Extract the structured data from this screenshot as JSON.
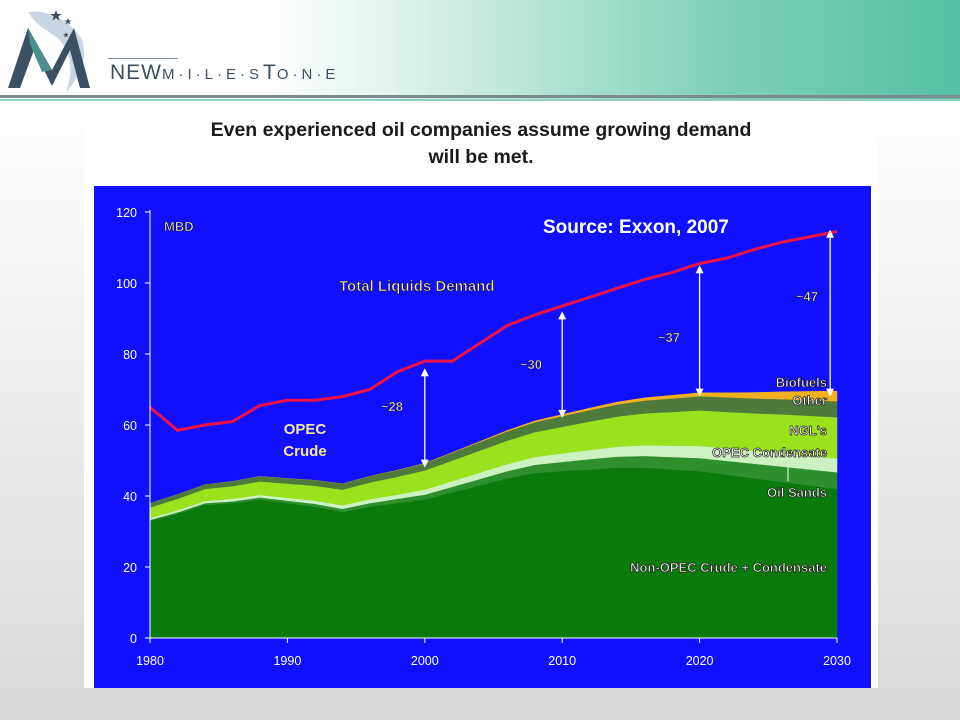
{
  "brand": {
    "name_part1": "NEW",
    "name_part2": "M·I·L·E·S",
    "name_part3": "T",
    "name_part4": "O·N·E",
    "colors": {
      "navy": "#3d4f63",
      "teal": "#4a8f8a",
      "accent": "#57c0a3"
    }
  },
  "slide": {
    "title_line1": "Even experienced oil companies assume growing demand",
    "title_line2": "will be met."
  },
  "chart_data": {
    "type": "area",
    "subtype": "stacked area with line",
    "source_label": "Source: Exxon, 2007",
    "unit_label": "MBD",
    "x": [
      1980,
      1982,
      1984,
      1986,
      1988,
      1990,
      1992,
      1994,
      1996,
      1998,
      2000,
      2002,
      2004,
      2006,
      2008,
      2010,
      2012,
      2014,
      2016,
      2018,
      2020,
      2022,
      2024,
      2026,
      2028,
      2030
    ],
    "xlim": [
      1980,
      2030
    ],
    "ylim": [
      0,
      120
    ],
    "x_ticks": [
      "1980",
      "1990",
      "2000",
      "2010",
      "2020",
      "2030"
    ],
    "y_ticks": [
      "0",
      "20",
      "40",
      "60",
      "80",
      "100",
      "120"
    ],
    "plot_background": "#1010ff",
    "series": [
      {
        "name": "Non-OPEC Crude + Condensate",
        "color": "#0a7a0a",
        "values": [
          33,
          35,
          37.5,
          38,
          39,
          38,
          37,
          35.5,
          37,
          38,
          39,
          41,
          43,
          45,
          46.5,
          47,
          47.5,
          48,
          48,
          47.5,
          47,
          46,
          45,
          44,
          43,
          42
        ]
      },
      {
        "name": "Oil Sands",
        "color": "#2f8f2f",
        "values": [
          0.3,
          0.4,
          0.5,
          0.5,
          0.6,
          0.7,
          0.8,
          0.9,
          1.0,
          1.2,
          1.4,
          1.6,
          1.8,
          2.0,
          2.3,
          2.6,
          2.9,
          3.1,
          3.3,
          3.5,
          3.7,
          3.9,
          4.1,
          4.3,
          4.5,
          4.7
        ]
      },
      {
        "name": "OPEC Condensate",
        "color": "#ccf2c2",
        "values": [
          0.5,
          0.6,
          0.6,
          0.7,
          0.7,
          0.8,
          0.9,
          1.0,
          1.1,
          1.2,
          1.4,
          1.6,
          1.8,
          2.0,
          2.2,
          2.4,
          2.6,
          2.8,
          3.0,
          3.2,
          3.4,
          3.5,
          3.6,
          3.7,
          3.8,
          3.9
        ]
      },
      {
        "name": "NGL's",
        "color": "#9ae21e",
        "values": [
          3,
          3.2,
          3.4,
          3.6,
          3.8,
          4,
          4.2,
          4.4,
          4.7,
          5,
          5.4,
          5.8,
          6.2,
          6.6,
          7,
          7.5,
          8,
          8.5,
          9,
          9.5,
          10,
          10.3,
          10.6,
          11,
          11.3,
          11.6
        ]
      },
      {
        "name": "Other",
        "color": "#4e7a3c",
        "values": [
          1.2,
          1.3,
          1.3,
          1.4,
          1.5,
          1.5,
          1.6,
          1.7,
          1.8,
          1.9,
          2.0,
          2.2,
          2.4,
          2.6,
          2.8,
          3.0,
          3.2,
          3.4,
          3.6,
          3.8,
          4.0,
          4.1,
          4.2,
          4.3,
          4.4,
          4.5
        ]
      },
      {
        "name": "Biofuels",
        "color": "#f0b020",
        "values": [
          0.05,
          0.05,
          0.05,
          0.05,
          0.05,
          0.06,
          0.06,
          0.07,
          0.08,
          0.1,
          0.15,
          0.2,
          0.3,
          0.4,
          0.5,
          0.6,
          0.7,
          0.8,
          0.9,
          1.0,
          1.1,
          1.4,
          1.8,
          2.2,
          2.6,
          3.0
        ]
      },
      {
        "name": "OPEC Crude",
        "color": "#1010ff",
        "values": [
          27,
          17,
          16.7,
          17.8,
          21.4,
          24,
          25,
          27.4,
          26.3,
          28.6,
          28.7,
          24.6,
          29.5,
          33.4,
          33.7,
          36.9,
          37,
          37.4,
          39.2,
          41.5,
          44.8,
          46.8,
          49.7,
          51.2,
          53.4,
          54.3
        ]
      }
    ],
    "line": {
      "name": "Total Liquids Demand",
      "color": "#ee1144",
      "values": [
        65,
        58.5,
        60,
        61,
        65.5,
        67,
        67,
        68,
        70,
        75,
        78,
        78,
        83,
        88,
        91,
        93.5,
        96,
        98.5,
        101,
        103,
        105.5,
        107,
        109.5,
        111.5,
        113,
        114.5
      ]
    },
    "labels": {
      "total_demand": "Total Liquids Demand",
      "opec_crude_line1": "OPEC",
      "opec_crude_line2": "Crude",
      "biofuels": "Biofuels",
      "other": "Other",
      "ngls": "NGL's",
      "opec_condensate": "OPEC Condensate",
      "oil_sands": "Oil Sands",
      "non_opec": "Non-OPEC Crude + Condensate"
    },
    "gaps": [
      {
        "label": "~28",
        "x": 2000,
        "y_from": 48,
        "y_to": 76
      },
      {
        "label": "~30",
        "x": 2010,
        "y_from": 62,
        "y_to": 92
      },
      {
        "label": "~37",
        "x": 2020,
        "y_from": 68,
        "y_to": 105
      },
      {
        "label": "~47",
        "x": 2029.5,
        "y_from": 68,
        "y_to": 115
      }
    ]
  }
}
